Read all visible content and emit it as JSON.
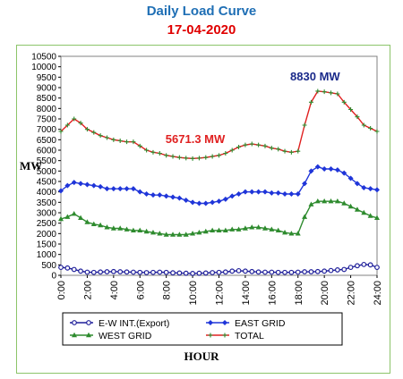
{
  "chart_data": {
    "type": "line",
    "title": "Daily Load Curve",
    "subtitle": "17-04-2020",
    "xlabel": "HOUR",
    "ylabel": "MW",
    "xlim": [
      0,
      24
    ],
    "ylim": [
      0,
      10500
    ],
    "x_ticks": [
      "0:00",
      "2:00",
      "4:00",
      "6:00",
      "8:00",
      "10:00",
      "12:00",
      "14:00",
      "16:00",
      "18:00",
      "20:00",
      "22:00",
      "24:00"
    ],
    "y_ticks": [
      0,
      500,
      1000,
      1500,
      2000,
      2500,
      3000,
      3500,
      4000,
      4500,
      5000,
      5500,
      6000,
      6500,
      7000,
      7500,
      8000,
      8500,
      9000,
      9500,
      10000,
      10500
    ],
    "grid": false,
    "legend_position": "bottom",
    "x": [
      0,
      0.5,
      1,
      1.5,
      2,
      2.5,
      3,
      3.5,
      4,
      4.5,
      5,
      5.5,
      6,
      6.5,
      7,
      7.5,
      8,
      8.5,
      9,
      9.5,
      10,
      10.5,
      11,
      11.5,
      12,
      12.5,
      13,
      13.5,
      14,
      14.5,
      15,
      15.5,
      16,
      16.5,
      17,
      17.5,
      18,
      18.5,
      19,
      19.5,
      20,
      20.5,
      21,
      21.5,
      22,
      22.5,
      23,
      23.5,
      24
    ],
    "series": [
      {
        "name": "E-W INT.(Export)",
        "color": "#1f1f9a",
        "marker": "circle-open",
        "values": [
          380,
          350,
          280,
          200,
          150,
          140,
          160,
          170,
          180,
          170,
          160,
          150,
          140,
          130,
          140,
          150,
          140,
          120,
          110,
          100,
          90,
          100,
          110,
          130,
          140,
          160,
          200,
          220,
          200,
          180,
          160,
          150,
          150,
          140,
          140,
          140,
          150,
          170,
          170,
          180,
          200,
          230,
          260,
          280,
          380,
          460,
          520,
          500,
          380
        ]
      },
      {
        "name": "EAST GRID",
        "color": "#1f35d9",
        "marker": "diamond",
        "values": [
          4050,
          4300,
          4450,
          4400,
          4350,
          4300,
          4250,
          4150,
          4150,
          4150,
          4150,
          4150,
          4000,
          3900,
          3850,
          3850,
          3800,
          3750,
          3700,
          3600,
          3500,
          3450,
          3450,
          3500,
          3550,
          3650,
          3800,
          3900,
          4000,
          4000,
          4000,
          4000,
          3950,
          3950,
          3900,
          3900,
          3900,
          4400,
          5000,
          5200,
          5100,
          5100,
          5050,
          4900,
          4650,
          4400,
          4200,
          4150,
          4100
        ]
      },
      {
        "name": "WEST GRID",
        "color": "#2e8b2e",
        "marker": "triangle",
        "values": [
          2700,
          2800,
          2950,
          2750,
          2550,
          2450,
          2400,
          2300,
          2250,
          2250,
          2200,
          2150,
          2150,
          2100,
          2050,
          2000,
          1950,
          1950,
          1950,
          1950,
          2000,
          2050,
          2100,
          2150,
          2150,
          2150,
          2200,
          2200,
          2250,
          2300,
          2300,
          2250,
          2200,
          2150,
          2050,
          2000,
          2000,
          2800,
          3400,
          3550,
          3550,
          3550,
          3550,
          3450,
          3300,
          3150,
          3000,
          2850,
          2750
        ]
      },
      {
        "name": "TOTAL",
        "color": "#e02020",
        "marker": "plus",
        "values": [
          6900,
          7200,
          7500,
          7300,
          7000,
          6850,
          6700,
          6600,
          6500,
          6450,
          6400,
          6400,
          6200,
          6000,
          5900,
          5850,
          5750,
          5700,
          5650,
          5620,
          5600,
          5620,
          5650,
          5700,
          5750,
          5850,
          6000,
          6150,
          6250,
          6300,
          6250,
          6200,
          6100,
          6050,
          5950,
          5900,
          5950,
          7200,
          8300,
          8830,
          8800,
          8750,
          8700,
          8300,
          7950,
          7600,
          7200,
          7050,
          6900
        ]
      }
    ],
    "annotations": [
      {
        "text": "5671.3 MW",
        "x": 10.2,
        "y": 6350,
        "color": "#e02020"
      },
      {
        "text": "8830 MW",
        "x": 19.3,
        "y": 9350,
        "color": "#1a2a8a"
      }
    ]
  }
}
